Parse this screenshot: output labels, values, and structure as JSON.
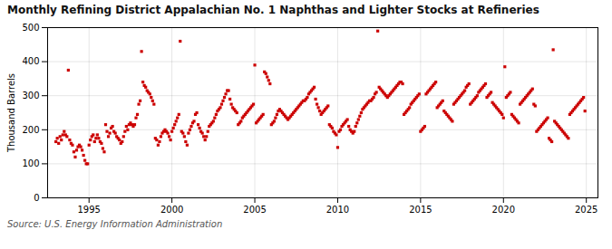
{
  "chart_data": {
    "type": "scatter",
    "title": "Monthly Refining District Appalachian No. 1 Naphthas and Lighter Stocks at Refineries",
    "ylabel": "Thousand Barrels",
    "annotations": [
      "Source: U.S. Energy Information Administration"
    ],
    "color": "#CC0000",
    "marker": "square",
    "grid": true,
    "xlim": [
      1992.5,
      2025.7
    ],
    "ylim": [
      0,
      500
    ],
    "xticks": [
      1995,
      2000,
      2005,
      2010,
      2015,
      2020,
      2025
    ],
    "yticks": [
      0,
      100,
      200,
      300,
      400,
      500
    ],
    "x": [
      1993.0,
      1993.083,
      1993.167,
      1993.25,
      1993.333,
      1993.417,
      1993.5,
      1993.583,
      1993.667,
      1993.75,
      1993.833,
      1993.917,
      1994.0,
      1994.083,
      1994.167,
      1994.25,
      1994.333,
      1994.417,
      1994.5,
      1994.583,
      1994.667,
      1994.75,
      1994.833,
      1994.917,
      1995.0,
      1995.083,
      1995.167,
      1995.25,
      1995.333,
      1995.417,
      1995.5,
      1995.583,
      1995.667,
      1995.75,
      1995.833,
      1995.917,
      1996.0,
      1996.083,
      1996.167,
      1996.25,
      1996.333,
      1996.417,
      1996.5,
      1996.583,
      1996.667,
      1996.75,
      1996.833,
      1996.917,
      1997.0,
      1997.083,
      1997.167,
      1997.25,
      1997.333,
      1997.417,
      1997.5,
      1997.583,
      1997.667,
      1997.75,
      1997.833,
      1997.917,
      1998.0,
      1998.083,
      1998.167,
      1998.25,
      1998.333,
      1998.417,
      1998.5,
      1998.583,
      1998.667,
      1998.75,
      1998.833,
      1998.917,
      1999.0,
      1999.083,
      1999.167,
      1999.25,
      1999.333,
      1999.417,
      1999.5,
      1999.583,
      1999.667,
      1999.75,
      1999.833,
      1999.917,
      2000.0,
      2000.083,
      2000.167,
      2000.25,
      2000.333,
      2000.417,
      2000.5,
      2000.583,
      2000.667,
      2000.75,
      2000.833,
      2000.917,
      2001.0,
      2001.083,
      2001.167,
      2001.25,
      2001.333,
      2001.417,
      2001.5,
      2001.583,
      2001.667,
      2001.75,
      2001.833,
      2001.917,
      2002.0,
      2002.083,
      2002.167,
      2002.25,
      2002.333,
      2002.417,
      2002.5,
      2002.583,
      2002.667,
      2002.75,
      2002.833,
      2002.917,
      2003.0,
      2003.083,
      2003.167,
      2003.25,
      2003.333,
      2003.417,
      2003.5,
      2003.583,
      2003.667,
      2003.75,
      2003.833,
      2003.917,
      2004.0,
      2004.083,
      2004.167,
      2004.25,
      2004.333,
      2004.417,
      2004.5,
      2004.583,
      2004.667,
      2004.75,
      2004.833,
      2004.917,
      2005.0,
      2005.083,
      2005.167,
      2005.25,
      2005.333,
      2005.417,
      2005.5,
      2005.583,
      2005.667,
      2005.75,
      2005.833,
      2005.917,
      2006.0,
      2006.083,
      2006.167,
      2006.25,
      2006.333,
      2006.417,
      2006.5,
      2006.583,
      2006.667,
      2006.75,
      2006.833,
      2006.917,
      2007.0,
      2007.083,
      2007.167,
      2007.25,
      2007.333,
      2007.417,
      2007.5,
      2007.583,
      2007.667,
      2007.75,
      2007.833,
      2007.917,
      2008.0,
      2008.083,
      2008.167,
      2008.25,
      2008.333,
      2008.417,
      2008.5,
      2008.583,
      2008.667,
      2008.75,
      2008.833,
      2008.917,
      2009.0,
      2009.083,
      2009.167,
      2009.25,
      2009.333,
      2009.417,
      2009.5,
      2009.583,
      2009.667,
      2009.75,
      2009.833,
      2009.917,
      2010.0,
      2010.083,
      2010.167,
      2010.25,
      2010.333,
      2010.417,
      2010.5,
      2010.583,
      2010.667,
      2010.75,
      2010.833,
      2010.917,
      2011.0,
      2011.083,
      2011.167,
      2011.25,
      2011.333,
      2011.417,
      2011.5,
      2011.583,
      2011.667,
      2011.75,
      2011.833,
      2011.917,
      2012.0,
      2012.083,
      2012.167,
      2012.25,
      2012.333,
      2012.417,
      2012.5,
      2012.583,
      2012.667,
      2012.75,
      2012.833,
      2012.917,
      2013.0,
      2013.083,
      2013.167,
      2013.25,
      2013.333,
      2013.417,
      2013.5,
      2013.583,
      2013.667,
      2013.75,
      2013.833,
      2013.917,
      2014.0,
      2014.083,
      2014.167,
      2014.25,
      2014.333,
      2014.417,
      2014.5,
      2014.583,
      2014.667,
      2014.75,
      2014.833,
      2014.917,
      2015.0,
      2015.083,
      2015.167,
      2015.25,
      2015.333,
      2015.417,
      2015.5,
      2015.583,
      2015.667,
      2015.75,
      2015.833,
      2015.917,
      2016.0,
      2016.083,
      2016.167,
      2016.25,
      2016.333,
      2016.417,
      2016.5,
      2016.583,
      2016.667,
      2016.75,
      2016.833,
      2016.917,
      2017.0,
      2017.083,
      2017.167,
      2017.25,
      2017.333,
      2017.417,
      2017.5,
      2017.583,
      2017.667,
      2017.75,
      2017.833,
      2017.917,
      2018.0,
      2018.083,
      2018.167,
      2018.25,
      2018.333,
      2018.417,
      2018.5,
      2018.583,
      2018.667,
      2018.75,
      2018.833,
      2018.917,
      2019.0,
      2019.083,
      2019.167,
      2019.25,
      2019.333,
      2019.417,
      2019.5,
      2019.583,
      2019.667,
      2019.75,
      2019.833,
      2019.917,
      2020.0,
      2020.083,
      2020.167,
      2020.25,
      2020.333,
      2020.417,
      2020.5,
      2020.583,
      2020.667,
      2020.75,
      2020.833,
      2020.917,
      2021.0,
      2021.083,
      2021.167,
      2021.25,
      2021.333,
      2021.417,
      2021.5,
      2021.583,
      2021.667,
      2021.75,
      2021.833,
      2021.917,
      2022.0,
      2022.083,
      2022.167,
      2022.25,
      2022.333,
      2022.417,
      2022.5,
      2022.583,
      2022.667,
      2022.75,
      2022.833,
      2022.917,
      2023.0,
      2023.083,
      2023.167,
      2023.25,
      2023.333,
      2023.417,
      2023.5,
      2023.583,
      2023.667,
      2023.75,
      2023.833,
      2023.917,
      2024.0,
      2024.083,
      2024.167,
      2024.25,
      2024.333,
      2024.417,
      2024.5,
      2024.583,
      2024.667,
      2024.75,
      2024.833,
      2024.917
    ],
    "values": [
      165,
      175,
      160,
      180,
      170,
      185,
      195,
      185,
      180,
      375,
      170,
      160,
      155,
      135,
      120,
      140,
      150,
      155,
      150,
      140,
      125,
      110,
      100,
      100,
      155,
      170,
      180,
      185,
      165,
      175,
      185,
      175,
      165,
      160,
      145,
      135,
      215,
      195,
      180,
      190,
      205,
      210,
      195,
      190,
      180,
      175,
      170,
      160,
      165,
      180,
      195,
      210,
      200,
      215,
      220,
      215,
      210,
      215,
      235,
      245,
      275,
      285,
      430,
      340,
      330,
      325,
      315,
      310,
      305,
      295,
      285,
      275,
      175,
      170,
      155,
      165,
      180,
      190,
      195,
      200,
      195,
      190,
      180,
      170,
      195,
      205,
      215,
      225,
      235,
      245,
      460,
      195,
      190,
      180,
      165,
      155,
      190,
      200,
      210,
      220,
      225,
      245,
      250,
      215,
      205,
      195,
      190,
      180,
      170,
      180,
      195,
      210,
      215,
      220,
      225,
      235,
      245,
      255,
      260,
      265,
      275,
      285,
      295,
      305,
      315,
      315,
      290,
      275,
      265,
      260,
      255,
      250,
      215,
      220,
      225,
      235,
      240,
      245,
      250,
      255,
      260,
      265,
      270,
      275,
      390,
      220,
      225,
      230,
      235,
      240,
      245,
      370,
      365,
      355,
      345,
      335,
      215,
      220,
      225,
      235,
      245,
      255,
      260,
      255,
      250,
      245,
      240,
      235,
      230,
      235,
      240,
      245,
      250,
      255,
      260,
      265,
      270,
      275,
      280,
      285,
      285,
      290,
      295,
      305,
      310,
      315,
      320,
      325,
      290,
      275,
      265,
      255,
      245,
      250,
      255,
      260,
      265,
      270,
      215,
      210,
      205,
      195,
      190,
      185,
      148,
      195,
      200,
      210,
      215,
      220,
      225,
      230,
      210,
      200,
      195,
      190,
      195,
      210,
      220,
      230,
      240,
      250,
      260,
      265,
      270,
      275,
      280,
      285,
      285,
      290,
      295,
      305,
      310,
      490,
      325,
      320,
      315,
      310,
      305,
      300,
      295,
      300,
      305,
      310,
      315,
      320,
      325,
      330,
      335,
      340,
      340,
      335,
      245,
      250,
      255,
      260,
      265,
      275,
      280,
      285,
      290,
      295,
      300,
      305,
      195,
      200,
      205,
      210,
      305,
      310,
      315,
      320,
      325,
      330,
      335,
      340,
      265,
      270,
      275,
      280,
      285,
      255,
      250,
      245,
      240,
      235,
      230,
      225,
      275,
      280,
      285,
      290,
      295,
      300,
      305,
      310,
      315,
      325,
      330,
      335,
      275,
      280,
      285,
      290,
      295,
      300,
      310,
      315,
      320,
      325,
      330,
      335,
      295,
      300,
      305,
      310,
      280,
      275,
      270,
      265,
      260,
      255,
      250,
      245,
      235,
      385,
      295,
      300,
      305,
      310,
      245,
      240,
      235,
      230,
      225,
      220,
      275,
      280,
      285,
      290,
      295,
      300,
      305,
      310,
      315,
      320,
      275,
      270,
      195,
      200,
      205,
      210,
      215,
      220,
      225,
      230,
      235,
      175,
      170,
      165,
      435,
      225,
      220,
      215,
      210,
      205,
      200,
      195,
      190,
      185,
      180,
      175,
      245,
      250,
      255,
      260,
      265,
      270,
      275,
      280,
      285,
      290,
      295,
      255
    ]
  }
}
